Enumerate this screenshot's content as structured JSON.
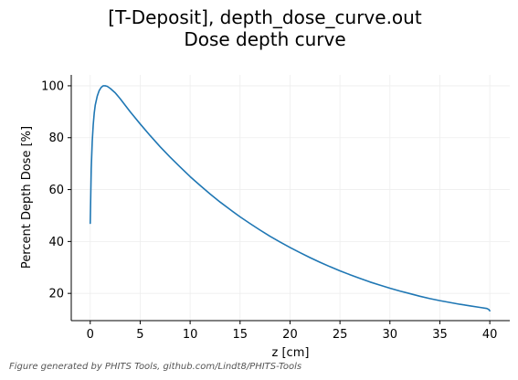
{
  "figure": {
    "footer": "Figure generated by PHITS Tools, github.com/Lindt8/PHITS-Tools"
  },
  "chart_data": {
    "type": "line",
    "title_line1": "[T-Deposit], depth_dose_curve.out",
    "title_line2": "Dose depth curve",
    "xlabel": "z [cm]",
    "ylabel": "Percent Depth Dose [%]",
    "xlim": [
      -1.9,
      42.0
    ],
    "ylim": [
      9.5,
      104.2
    ],
    "xticks": [
      0,
      5,
      10,
      15,
      20,
      25,
      30,
      35,
      40
    ],
    "yticks": [
      20,
      40,
      60,
      80,
      100
    ],
    "grid": true,
    "legend": "none",
    "line_color": "#1f77b4",
    "series": [
      {
        "x": [
          0.0,
          0.1,
          0.2,
          0.3,
          0.4,
          0.5,
          0.7,
          0.9,
          1.1,
          1.3,
          1.5,
          1.7,
          2.0,
          2.5,
          3.0,
          4.0,
          5.0,
          6.0,
          7.0,
          8.0,
          9.0,
          10.0,
          11.0,
          12.0,
          13.0,
          14.0,
          15.0,
          16.0,
          17.0,
          18.0,
          19.0,
          20.0,
          21.0,
          22.0,
          23.0,
          24.0,
          25.0,
          26.0,
          27.0,
          28.0,
          29.0,
          30.0,
          31.0,
          32.0,
          33.0,
          34.0,
          35.0,
          36.0,
          37.0,
          38.0,
          39.0,
          39.7,
          39.9,
          40.0
        ],
        "y": [
          47.0,
          68.0,
          78.5,
          85.0,
          89.5,
          92.5,
          96.0,
          98.2,
          99.4,
          100.0,
          100.0,
          99.8,
          99.0,
          97.3,
          95.0,
          90.0,
          85.3,
          80.8,
          76.5,
          72.5,
          68.7,
          65.0,
          61.6,
          58.3,
          55.2,
          52.3,
          49.5,
          46.9,
          44.4,
          42.0,
          39.8,
          37.7,
          35.7,
          33.8,
          32.0,
          30.3,
          28.7,
          27.2,
          25.8,
          24.4,
          23.2,
          22.0,
          20.9,
          19.9,
          18.9,
          18.0,
          17.2,
          16.5,
          15.8,
          15.2,
          14.6,
          14.2,
          13.8,
          13.3
        ]
      }
    ]
  }
}
